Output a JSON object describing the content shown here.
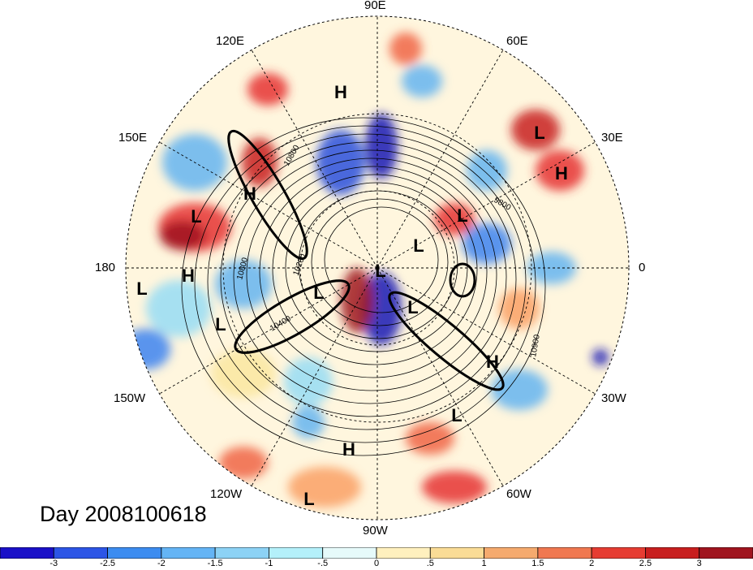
{
  "map": {
    "projection": "north polar stereographic",
    "background_field_colors": [
      "#1414b4",
      "#2850dc",
      "#3c82f0",
      "#64b4f0",
      "#96dcf5",
      "#c8f5fa",
      "#fffadc",
      "#fae6a0",
      "#faa064",
      "#f06446",
      "#e63232",
      "#c81e1e",
      "#a0141e"
    ],
    "contour_labels": [
      "10800",
      "9800",
      "10900",
      "10200",
      "10400",
      "10800"
    ],
    "pressure_centers": [
      {
        "label": "H"
      },
      {
        "label": "L"
      },
      {
        "label": "H"
      },
      {
        "label": "H"
      },
      {
        "label": "L"
      },
      {
        "label": "L"
      },
      {
        "label": "L"
      },
      {
        "label": "L"
      },
      {
        "label": "H"
      },
      {
        "label": "L"
      },
      {
        "label": "L"
      },
      {
        "label": "L"
      },
      {
        "label": "H"
      },
      {
        "label": "L"
      },
      {
        "label": "H"
      },
      {
        "label": "L"
      }
    ]
  },
  "longitude_labels": {
    "e90": "90E",
    "e120": "120E",
    "e60": "60E",
    "e150": "150E",
    "e30": "30E",
    "lon180": "180",
    "lon0": "0",
    "w150": "150W",
    "w30": "30W",
    "w120": "120W",
    "w60": "60W",
    "w90": "90W"
  },
  "day_label": "Day 2008100618",
  "colorbar": {
    "colors": [
      "#1a10c8",
      "#2c55e6",
      "#3c8cf0",
      "#64b4f5",
      "#8cd2f5",
      "#b4f0fa",
      "#e6fafa",
      "#fff0be",
      "#fadc96",
      "#f5aa6e",
      "#f07850",
      "#e63c32",
      "#c81e1e",
      "#a0141e"
    ],
    "labels": [
      "-3",
      "-2.5",
      "-2",
      "-1.5",
      "-1",
      "-.5",
      "0",
      ".5",
      "1",
      "1.5",
      "2",
      "2.5",
      "3"
    ]
  }
}
